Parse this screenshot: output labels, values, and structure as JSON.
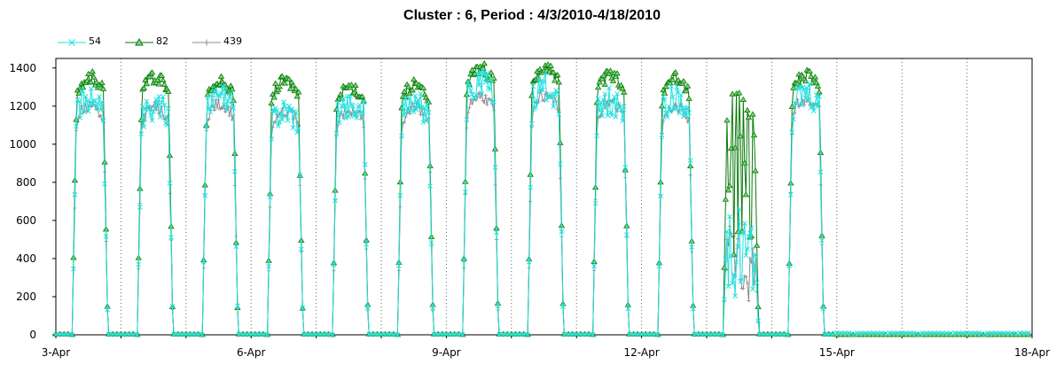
{
  "chart_data": {
    "type": "line",
    "title": "Cluster : 6, Period : 4/3/2010-4/18/2010",
    "xlabel": "",
    "ylabel": "",
    "ylim": [
      0,
      1450
    ],
    "y_ticks": [
      0,
      200,
      400,
      600,
      800,
      1000,
      1200,
      1400
    ],
    "x_range_days": [
      0,
      15
    ],
    "x_ticks": [
      "3-Apr",
      "6-Apr",
      "9-Apr",
      "12-Apr",
      "15-Apr",
      "18-Apr"
    ],
    "grid": "vertical dotted lines at day boundaries",
    "legend_position": "top-left",
    "series": [
      {
        "name": "54",
        "color": "#22e0e0",
        "marker": "x"
      },
      {
        "name": "82",
        "color": "#0a7a0a",
        "marker": "triangle"
      },
      {
        "name": "439",
        "color": "#8c8c8c",
        "marker": "plus"
      }
    ],
    "daily_profiles": [
      {
        "date": "3-Apr",
        "peak": {
          "54": 1290,
          "82": 1385,
          "439": 1230
        }
      },
      {
        "date": "4-Apr",
        "peak": {
          "54": 1250,
          "82": 1390,
          "439": 1220
        }
      },
      {
        "date": "5-Apr",
        "peak": {
          "54": 1300,
          "82": 1360,
          "439": 1240
        }
      },
      {
        "date": "6-Apr",
        "peak": {
          "54": 1230,
          "82": 1360,
          "439": 1200
        }
      },
      {
        "date": "7-Apr",
        "peak": {
          "54": 1270,
          "82": 1330,
          "439": 1210
        }
      },
      {
        "date": "8-Apr",
        "peak": {
          "54": 1260,
          "82": 1345,
          "439": 1220
        }
      },
      {
        "date": "9-Apr",
        "peak": {
          "54": 1370,
          "82": 1430,
          "439": 1280
        }
      },
      {
        "date": "10-Apr",
        "peak": {
          "54": 1350,
          "82": 1430,
          "439": 1290
        }
      },
      {
        "date": "11-Apr",
        "peak": {
          "54": 1280,
          "82": 1395,
          "439": 1250
        }
      },
      {
        "date": "12-Apr",
        "peak": {
          "54": 1290,
          "82": 1380,
          "439": 1230
        }
      },
      {
        "date": "13-Apr",
        "peak": {
          "54": 670,
          "82": 1300,
          "439": 600
        }
      },
      {
        "date": "14-Apr",
        "peak": {
          "54": 1320,
          "82": 1390,
          "439": 1270
        }
      },
      {
        "date": "15-Apr",
        "peak": {
          "54": 10,
          "82": 0,
          "439": 5
        }
      },
      {
        "date": "16-Apr",
        "peak": {
          "54": 10,
          "82": 0,
          "439": 5
        }
      },
      {
        "date": "17-Apr",
        "peak": {
          "54": 10,
          "82": 0,
          "439": 5
        }
      }
    ]
  }
}
